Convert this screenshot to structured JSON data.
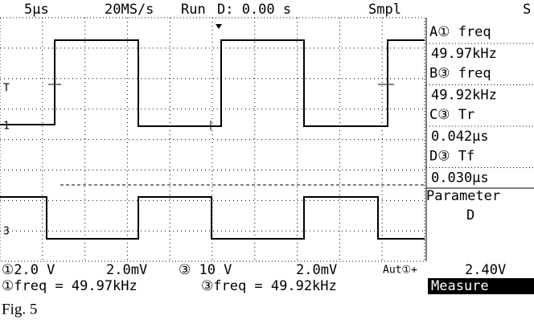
{
  "header": {
    "timebase": "5μs",
    "rate": "20MS/s",
    "state": "Run",
    "delay": "D: 0.00 s",
    "mode": "Smpl",
    "extra": "S"
  },
  "measurements": [
    {
      "label": "A① freq",
      "value": "49.97kHz"
    },
    {
      "label": "B③ freq",
      "value": "49.92kHz"
    },
    {
      "label": "C③ Tr",
      "value": "0.042μs"
    },
    {
      "label": "D③ Tf",
      "value": "0.030μs"
    }
  ],
  "parameter": {
    "label": "Parameter",
    "value": "D"
  },
  "markers": {
    "trigger": "T",
    "ch1": "1",
    "ch3": "3"
  },
  "status": {
    "ch1_scale": "①2.0 V",
    "ch1_probe": "2.0mV",
    "ch3_scale": "③ 10 V",
    "ch3_probe": "2.0mV",
    "trigger": "Aut①+",
    "trigger_level": "2.40V"
  },
  "readout": {
    "ch1": "①freq = 49.97kHz",
    "ch3": "③freq = 49.92kHz",
    "menu": "Measure"
  },
  "caption": "Fig. 5"
}
